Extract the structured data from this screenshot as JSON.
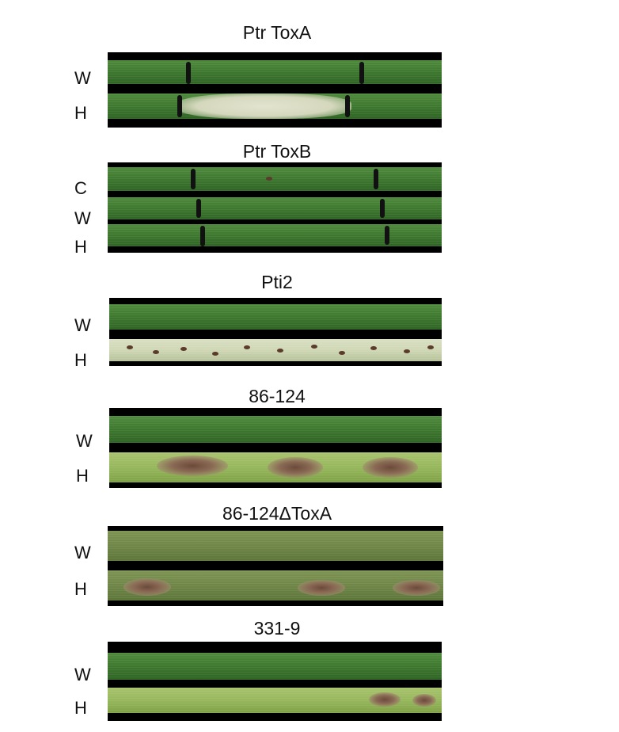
{
  "panels": [
    {
      "title": "Ptr ToxA",
      "rows": [
        "W",
        "H"
      ]
    },
    {
      "title": "Ptr ToxB",
      "rows": [
        "C",
        "W",
        "H"
      ]
    },
    {
      "title": "Pti2",
      "rows": [
        "W",
        "H"
      ]
    },
    {
      "title": "86-124",
      "rows": [
        "W",
        "H"
      ]
    },
    {
      "title": "86-124ΔToxA",
      "rows": [
        "W",
        "H"
      ]
    },
    {
      "title": "331-9",
      "rows": [
        "W",
        "H"
      ]
    }
  ]
}
